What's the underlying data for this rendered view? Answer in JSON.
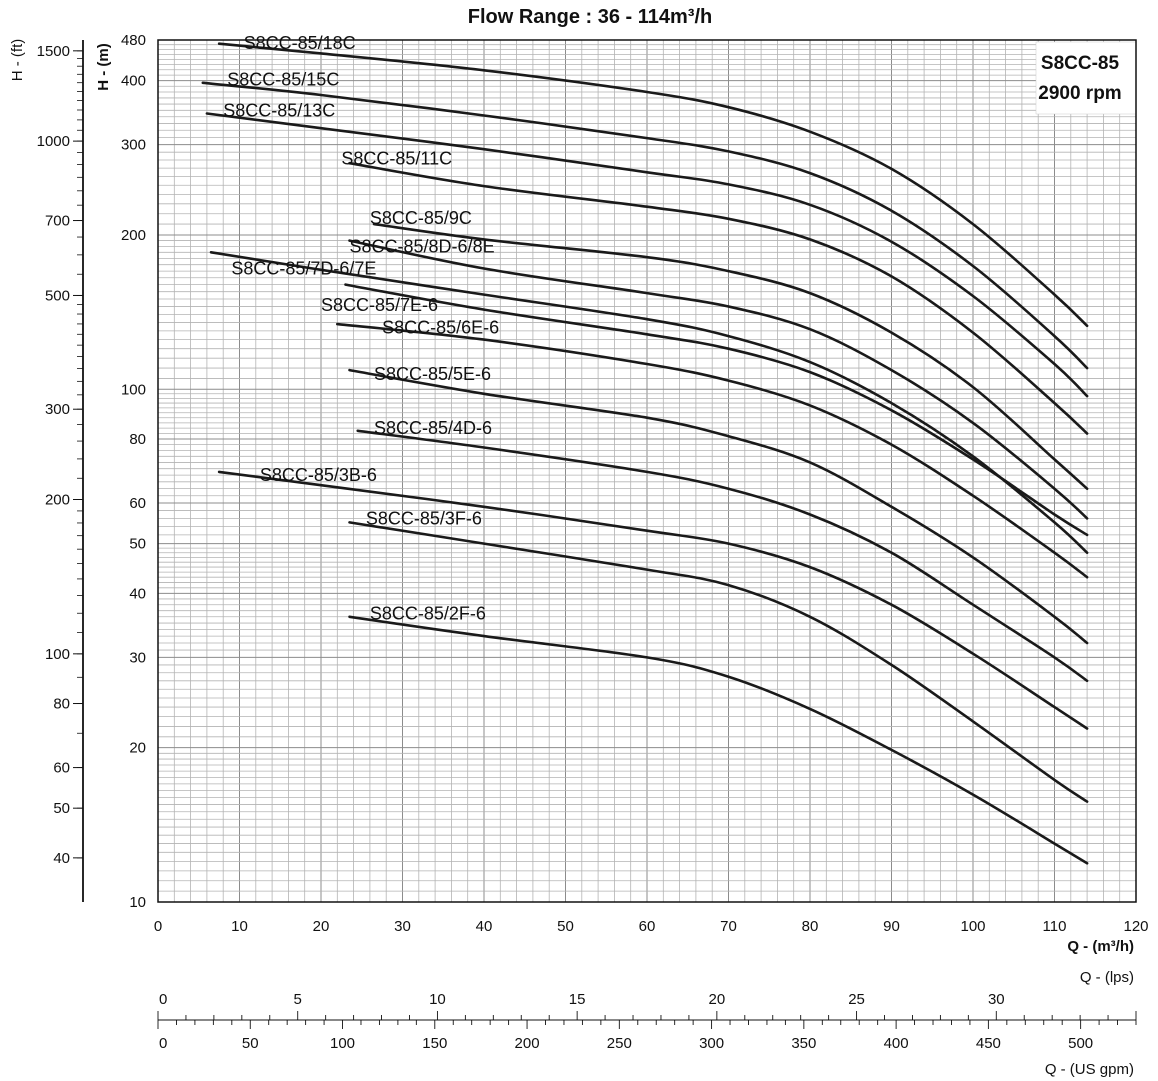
{
  "chart_data": {
    "type": "line",
    "title": "Flow Range : 36 - 114m³/h",
    "xlabel": "Q - (m³/h)",
    "ylabel": "H - (m)",
    "ylabel_secondary": "H - (ft)",
    "x_range": [
      0,
      120
    ],
    "y_range": [
      10,
      480
    ],
    "y_scale": "log",
    "grid": true,
    "info_box": {
      "model": "S8CC-85",
      "speed": "2900 rpm"
    },
    "x_ticks": [
      "0",
      "10",
      "20",
      "30",
      "40",
      "50",
      "60",
      "70",
      "80",
      "90",
      "100",
      "110",
      "120"
    ],
    "y_ticks": [
      {
        "value": 480,
        "label": "480"
      },
      {
        "value": 400,
        "label": "400"
      },
      {
        "value": 300,
        "label": "300"
      },
      {
        "value": 200,
        "label": "200"
      },
      {
        "value": 100,
        "label": "100"
      },
      {
        "value": 80,
        "label": "80"
      },
      {
        "value": 60,
        "label": "60"
      },
      {
        "value": 50,
        "label": "50"
      },
      {
        "value": 40,
        "label": "40"
      },
      {
        "value": 30,
        "label": "30"
      },
      {
        "value": 20,
        "label": "20"
      },
      {
        "value": 10,
        "label": "10"
      }
    ],
    "ft_ticks": [
      {
        "value": 1500,
        "label": "1500"
      },
      {
        "value": 1000,
        "label": "1000"
      },
      {
        "value": 700,
        "label": "700"
      },
      {
        "value": 500,
        "label": "500"
      },
      {
        "value": 300,
        "label": "300"
      },
      {
        "value": 200,
        "label": "200"
      },
      {
        "value": 100,
        "label": "100"
      },
      {
        "value": 80,
        "label": "80"
      },
      {
        "value": 60,
        "label": "60"
      },
      {
        "value": 50,
        "label": "50"
      },
      {
        "value": 40,
        "label": "40"
      }
    ],
    "lps_axis": {
      "label": "Q - (lps)",
      "max": 35,
      "ticks": [
        "0",
        "5",
        "10",
        "15",
        "20",
        "25",
        "30"
      ]
    },
    "gpm_axis": {
      "label": "Q - (US gpm)",
      "max": 530,
      "ticks": [
        "0",
        "50",
        "100",
        "150",
        "200",
        "250",
        "300",
        "350",
        "400",
        "450",
        "500"
      ]
    },
    "series": [
      {
        "name": "S8CC-85/18C",
        "label_at": [
          10.5,
          474
        ],
        "points": [
          [
            7.5,
            472
          ],
          [
            20,
            452
          ],
          [
            40,
            419
          ],
          [
            60,
            380
          ],
          [
            70,
            355
          ],
          [
            80,
            318
          ],
          [
            90,
            269
          ],
          [
            100,
            210
          ],
          [
            110,
            153
          ],
          [
            114,
            133
          ]
        ]
      },
      {
        "name": "S8CC-85/15C",
        "label_at": [
          8.5,
          402
        ],
        "points": [
          [
            5.5,
            396
          ],
          [
            20,
            375
          ],
          [
            40,
            342
          ],
          [
            60,
            309
          ],
          [
            70,
            291
          ],
          [
            80,
            264
          ],
          [
            90,
            223
          ],
          [
            100,
            174
          ],
          [
            110,
            127
          ],
          [
            114,
            110
          ]
        ]
      },
      {
        "name": "S8CC-85/13C",
        "label_at": [
          8,
          350
        ],
        "points": [
          [
            6,
            345
          ],
          [
            20,
            323
          ],
          [
            40,
            294
          ],
          [
            60,
            265
          ],
          [
            70,
            251
          ],
          [
            80,
            229
          ],
          [
            90,
            194
          ],
          [
            100,
            152
          ],
          [
            110,
            112
          ],
          [
            114,
            97
          ]
        ]
      },
      {
        "name": "S8CC-85/11C",
        "label_at": [
          22.5,
          282
        ],
        "points": [
          [
            23.5,
            276
          ],
          [
            40,
            249
          ],
          [
            60,
            227
          ],
          [
            70,
            215
          ],
          [
            80,
            196
          ],
          [
            90,
            166
          ],
          [
            100,
            129
          ],
          [
            110,
            94
          ],
          [
            114,
            82
          ]
        ]
      },
      {
        "name": "S8CC-85/9C",
        "label_at": [
          26,
          216
        ],
        "points": [
          [
            26.5,
            210
          ],
          [
            40,
            196
          ],
          [
            60,
            181
          ],
          [
            70,
            170
          ],
          [
            80,
            154
          ],
          [
            90,
            129
          ],
          [
            100,
            101
          ],
          [
            110,
            73
          ],
          [
            114,
            64
          ]
        ]
      },
      {
        "name": "S8CC-85/8D-6/8E",
        "label_at": [
          23.5,
          190
        ],
        "points": [
          [
            23.5,
            195
          ],
          [
            40,
            172
          ],
          [
            60,
            154
          ],
          [
            70,
            145
          ],
          [
            80,
            131
          ],
          [
            90,
            109
          ],
          [
            100,
            86
          ],
          [
            110,
            64
          ],
          [
            114,
            56
          ]
        ]
      },
      {
        "name": "S8CC-85/7D-6/7E",
        "label_at": [
          9,
          172
        ],
        "points": [
          [
            6.5,
            185
          ],
          [
            20,
            171
          ],
          [
            40,
            153
          ],
          [
            60,
            137
          ],
          [
            70,
            127
          ],
          [
            80,
            113
          ],
          [
            90,
            94
          ],
          [
            100,
            74
          ],
          [
            110,
            55
          ],
          [
            114,
            48
          ]
        ]
      },
      {
        "name": "S8CC-85/7E-6",
        "label_at": [
          20,
          146
        ],
        "points": [
          [
            23,
            160
          ],
          [
            40,
            143
          ],
          [
            60,
            128
          ],
          [
            70,
            120
          ],
          [
            80,
            108
          ],
          [
            90,
            91
          ],
          [
            100,
            73
          ],
          [
            110,
            57
          ],
          [
            114,
            52
          ]
        ]
      },
      {
        "name": "S8CC-85/6E-6",
        "label_at": [
          27.5,
          132
        ],
        "points": [
          [
            22,
            134
          ],
          [
            40,
            125
          ],
          [
            60,
            112
          ],
          [
            70,
            104
          ],
          [
            80,
            93
          ],
          [
            90,
            78
          ],
          [
            100,
            62
          ],
          [
            110,
            48
          ],
          [
            114,
            43
          ]
        ]
      },
      {
        "name": "S8CC-85/5E-6",
        "label_at": [
          26.5,
          107
        ],
        "points": [
          [
            23.5,
            109
          ],
          [
            40,
            98
          ],
          [
            60,
            88
          ],
          [
            70,
            81
          ],
          [
            80,
            72
          ],
          [
            90,
            59
          ],
          [
            100,
            47
          ],
          [
            110,
            36
          ],
          [
            114,
            32
          ]
        ]
      },
      {
        "name": "S8CC-85/4D-6",
        "label_at": [
          26.5,
          84
        ],
        "points": [
          [
            24.5,
            83
          ],
          [
            40,
            77
          ],
          [
            60,
            69
          ],
          [
            70,
            64
          ],
          [
            80,
            57
          ],
          [
            90,
            48
          ],
          [
            100,
            38
          ],
          [
            110,
            30
          ],
          [
            114,
            27
          ]
        ]
      },
      {
        "name": "S8CC-85/3B-6",
        "label_at": [
          12.5,
          68
        ],
        "points": [
          [
            7.5,
            69
          ],
          [
            20,
            65
          ],
          [
            40,
            59
          ],
          [
            60,
            53
          ],
          [
            70,
            50
          ],
          [
            80,
            45
          ],
          [
            90,
            38
          ],
          [
            100,
            30.5
          ],
          [
            110,
            24
          ],
          [
            114,
            21.8
          ]
        ]
      },
      {
        "name": "S8CC-85/3F-6",
        "label_at": [
          25.5,
          56
        ],
        "points": [
          [
            23.5,
            55
          ],
          [
            40,
            50
          ],
          [
            60,
            44.5
          ],
          [
            70,
            41.5
          ],
          [
            80,
            36
          ],
          [
            90,
            29
          ],
          [
            100,
            22.5
          ],
          [
            110,
            17.3
          ],
          [
            114,
            15.7
          ]
        ]
      },
      {
        "name": "S8CC-85/2F-6",
        "label_at": [
          26,
          36.5
        ],
        "points": [
          [
            23.5,
            36
          ],
          [
            40,
            33
          ],
          [
            60,
            30
          ],
          [
            70,
            27.5
          ],
          [
            80,
            23.8
          ],
          [
            90,
            19.8
          ],
          [
            100,
            16.2
          ],
          [
            110,
            13
          ],
          [
            114,
            11.9
          ]
        ]
      }
    ]
  }
}
